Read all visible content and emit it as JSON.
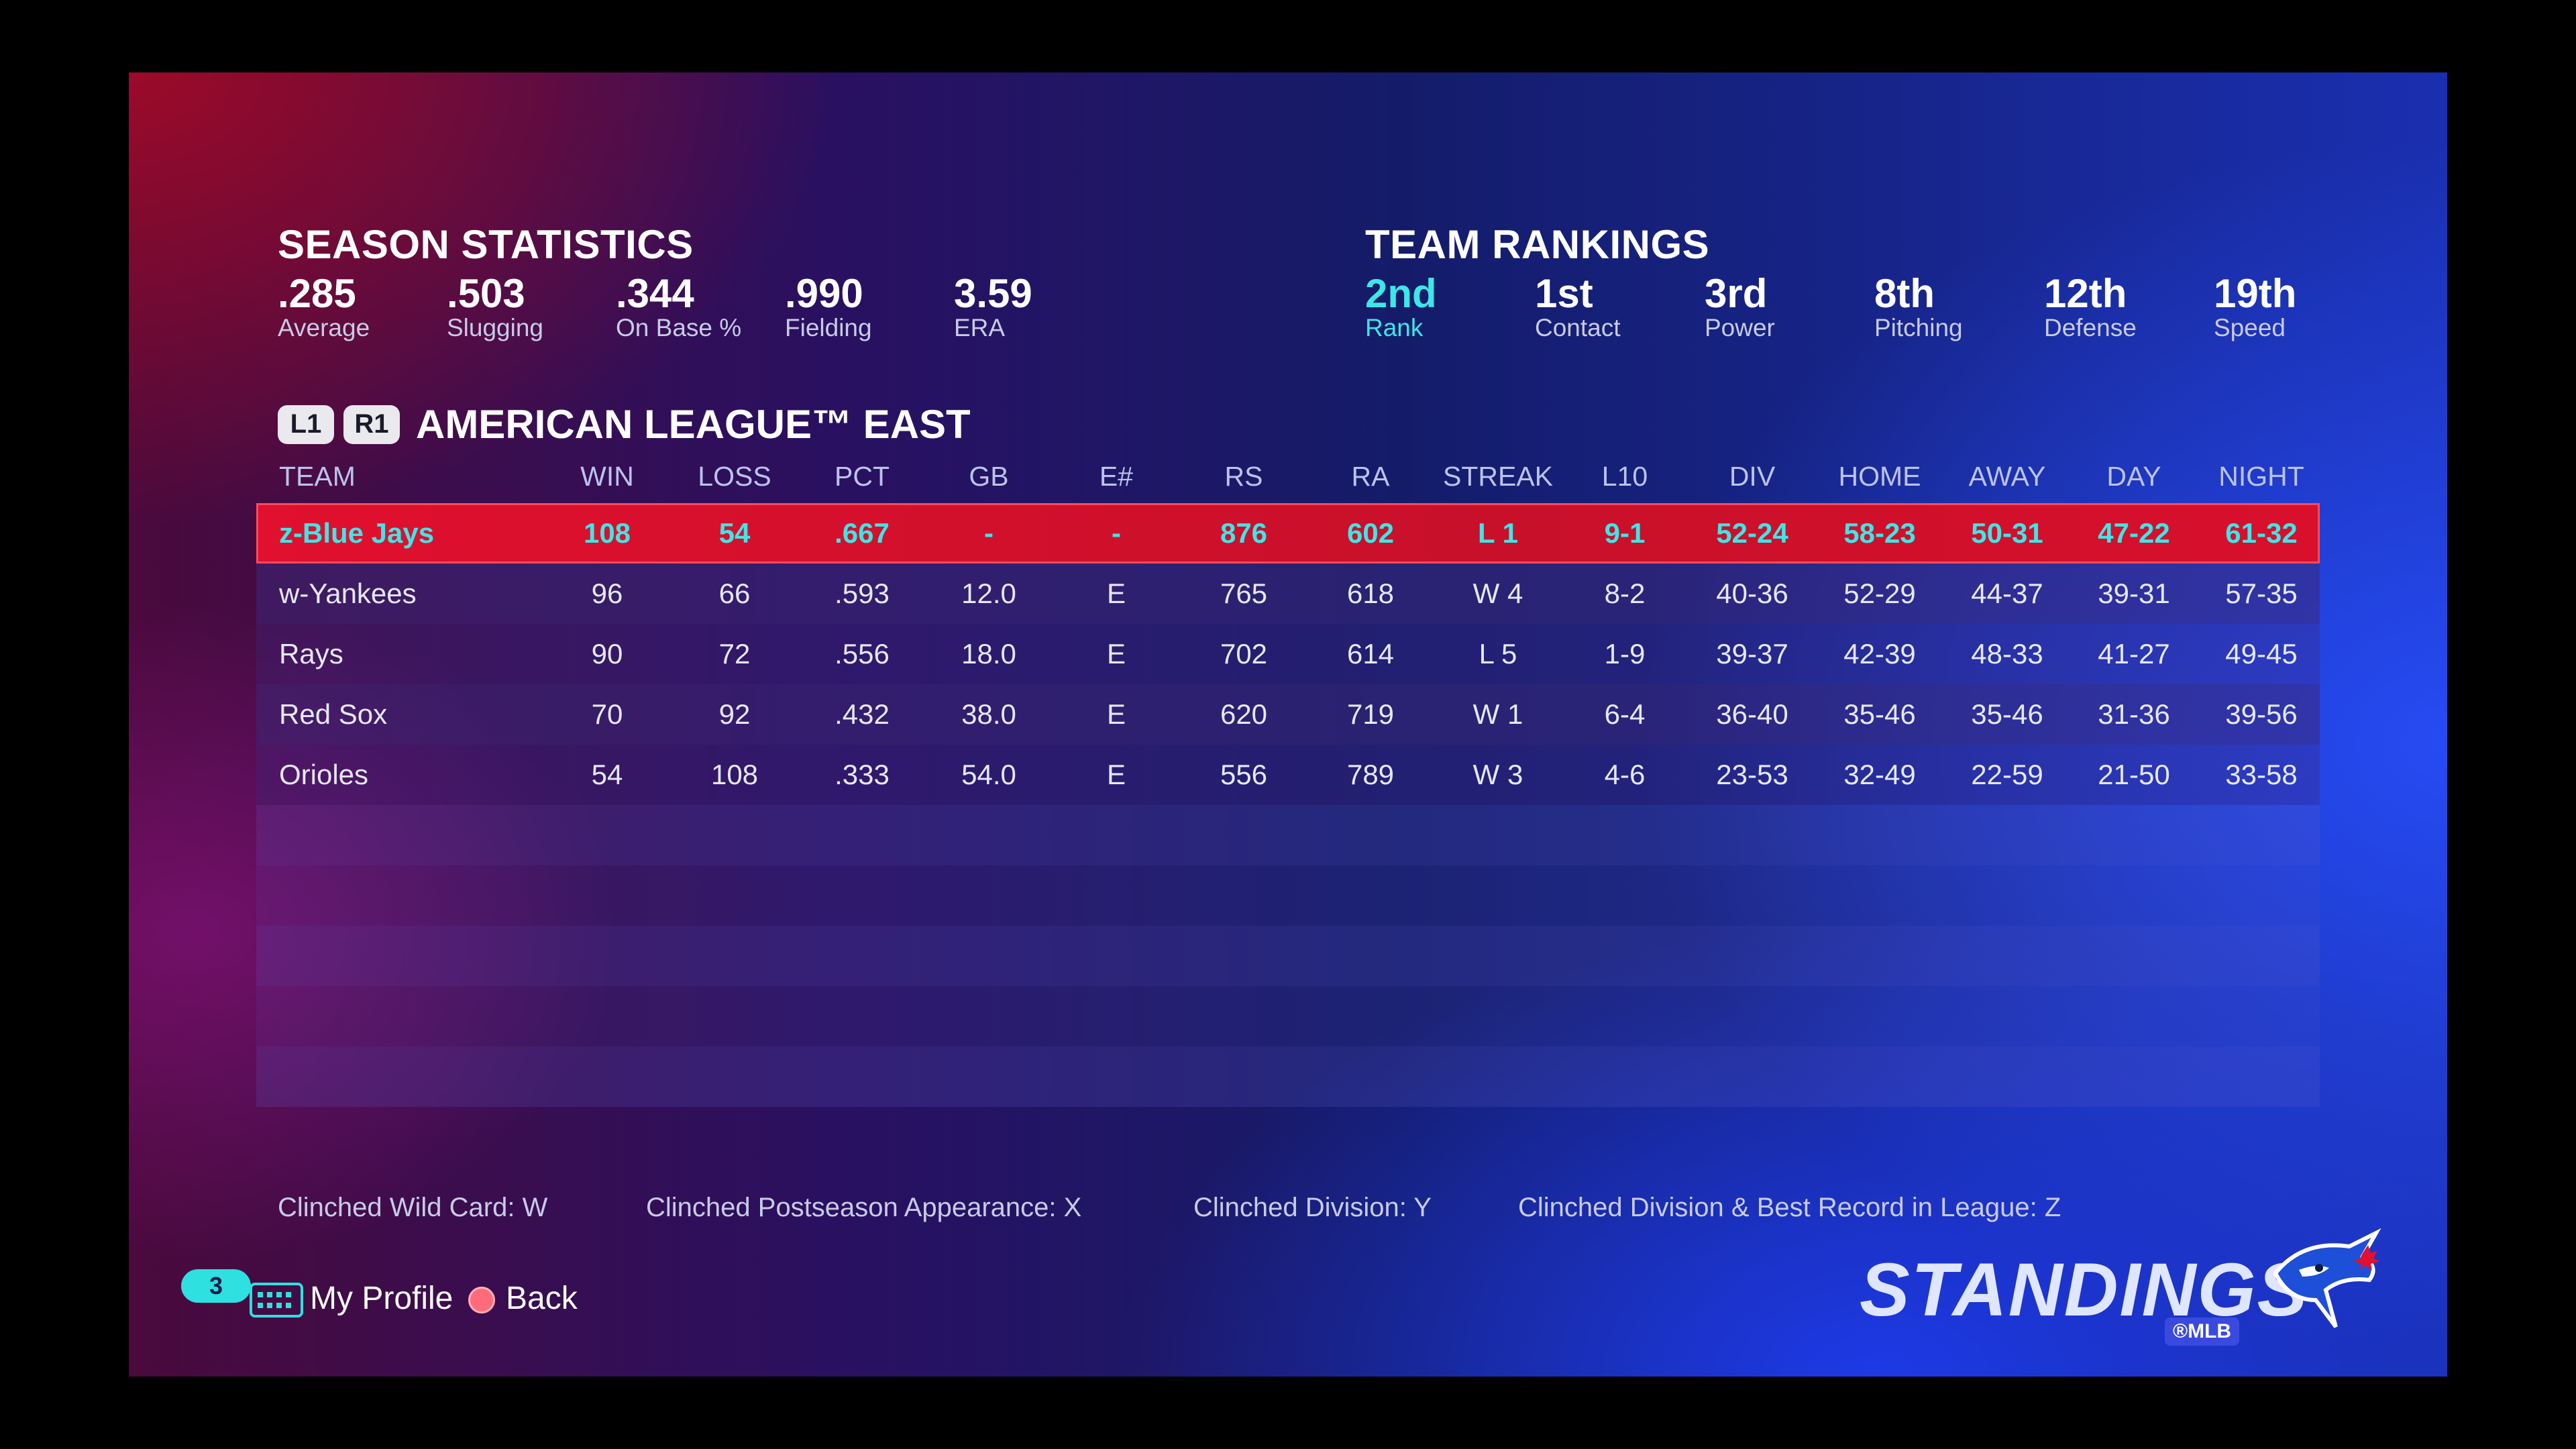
{
  "season_statistics": {
    "title": "SEASON STATISTICS",
    "items": [
      {
        "value": ".285",
        "label": "Average"
      },
      {
        "value": ".503",
        "label": "Slugging"
      },
      {
        "value": ".344",
        "label": "On Base %"
      },
      {
        "value": ".990",
        "label": "Fielding"
      },
      {
        "value": "3.59",
        "label": "ERA"
      }
    ]
  },
  "team_rankings": {
    "title": "TEAM RANKINGS",
    "items": [
      {
        "value": "2nd",
        "label": "Rank"
      },
      {
        "value": "1st",
        "label": "Contact"
      },
      {
        "value": "3rd",
        "label": "Power"
      },
      {
        "value": "8th",
        "label": "Pitching"
      },
      {
        "value": "12th",
        "label": "Defense"
      },
      {
        "value": "19th",
        "label": "Speed"
      }
    ]
  },
  "division": {
    "l1": "L1",
    "r1": "R1",
    "name": "AMERICAN LEAGUE™ EAST"
  },
  "table": {
    "headers": [
      "TEAM",
      "WIN",
      "LOSS",
      "PCT",
      "GB",
      "E#",
      "RS",
      "RA",
      "STREAK",
      "L10",
      "DIV",
      "HOME",
      "AWAY",
      "DAY",
      "NIGHT"
    ],
    "rows": [
      [
        "z-Blue Jays",
        "108",
        "54",
        ".667",
        "-",
        "-",
        "876",
        "602",
        "L 1",
        "9-1",
        "52-24",
        "58-23",
        "50-31",
        "47-22",
        "61-32"
      ],
      [
        "w-Yankees",
        "96",
        "66",
        ".593",
        "12.0",
        "E",
        "765",
        "618",
        "W 4",
        "8-2",
        "40-36",
        "52-29",
        "44-37",
        "39-31",
        "57-35"
      ],
      [
        "Rays",
        "90",
        "72",
        ".556",
        "18.0",
        "E",
        "702",
        "614",
        "L 5",
        "1-9",
        "39-37",
        "42-39",
        "48-33",
        "41-27",
        "49-45"
      ],
      [
        "Red Sox",
        "70",
        "92",
        ".432",
        "38.0",
        "E",
        "620",
        "719",
        "W 1",
        "6-4",
        "36-40",
        "35-46",
        "35-46",
        "31-36",
        "39-56"
      ],
      [
        "Orioles",
        "54",
        "108",
        ".333",
        "54.0",
        "E",
        "556",
        "789",
        "W 3",
        "4-6",
        "23-53",
        "32-49",
        "22-59",
        "21-50",
        "33-58"
      ]
    ]
  },
  "legend": [
    "Clinched Wild Card: W",
    "Clinched Postseason Appearance: X",
    "Clinched Division: Y",
    "Clinched Division & Best Record in League: Z"
  ],
  "footer": {
    "badge_count": "3",
    "my_profile": "My Profile",
    "back": "Back"
  },
  "branding": {
    "screen_title": "STANDINGS",
    "mlb_badge": "®MLB",
    "team_logo": "blue-jays-logo"
  },
  "colors": {
    "accent": "#3ee6e6",
    "selected_row": "#d0102c"
  }
}
